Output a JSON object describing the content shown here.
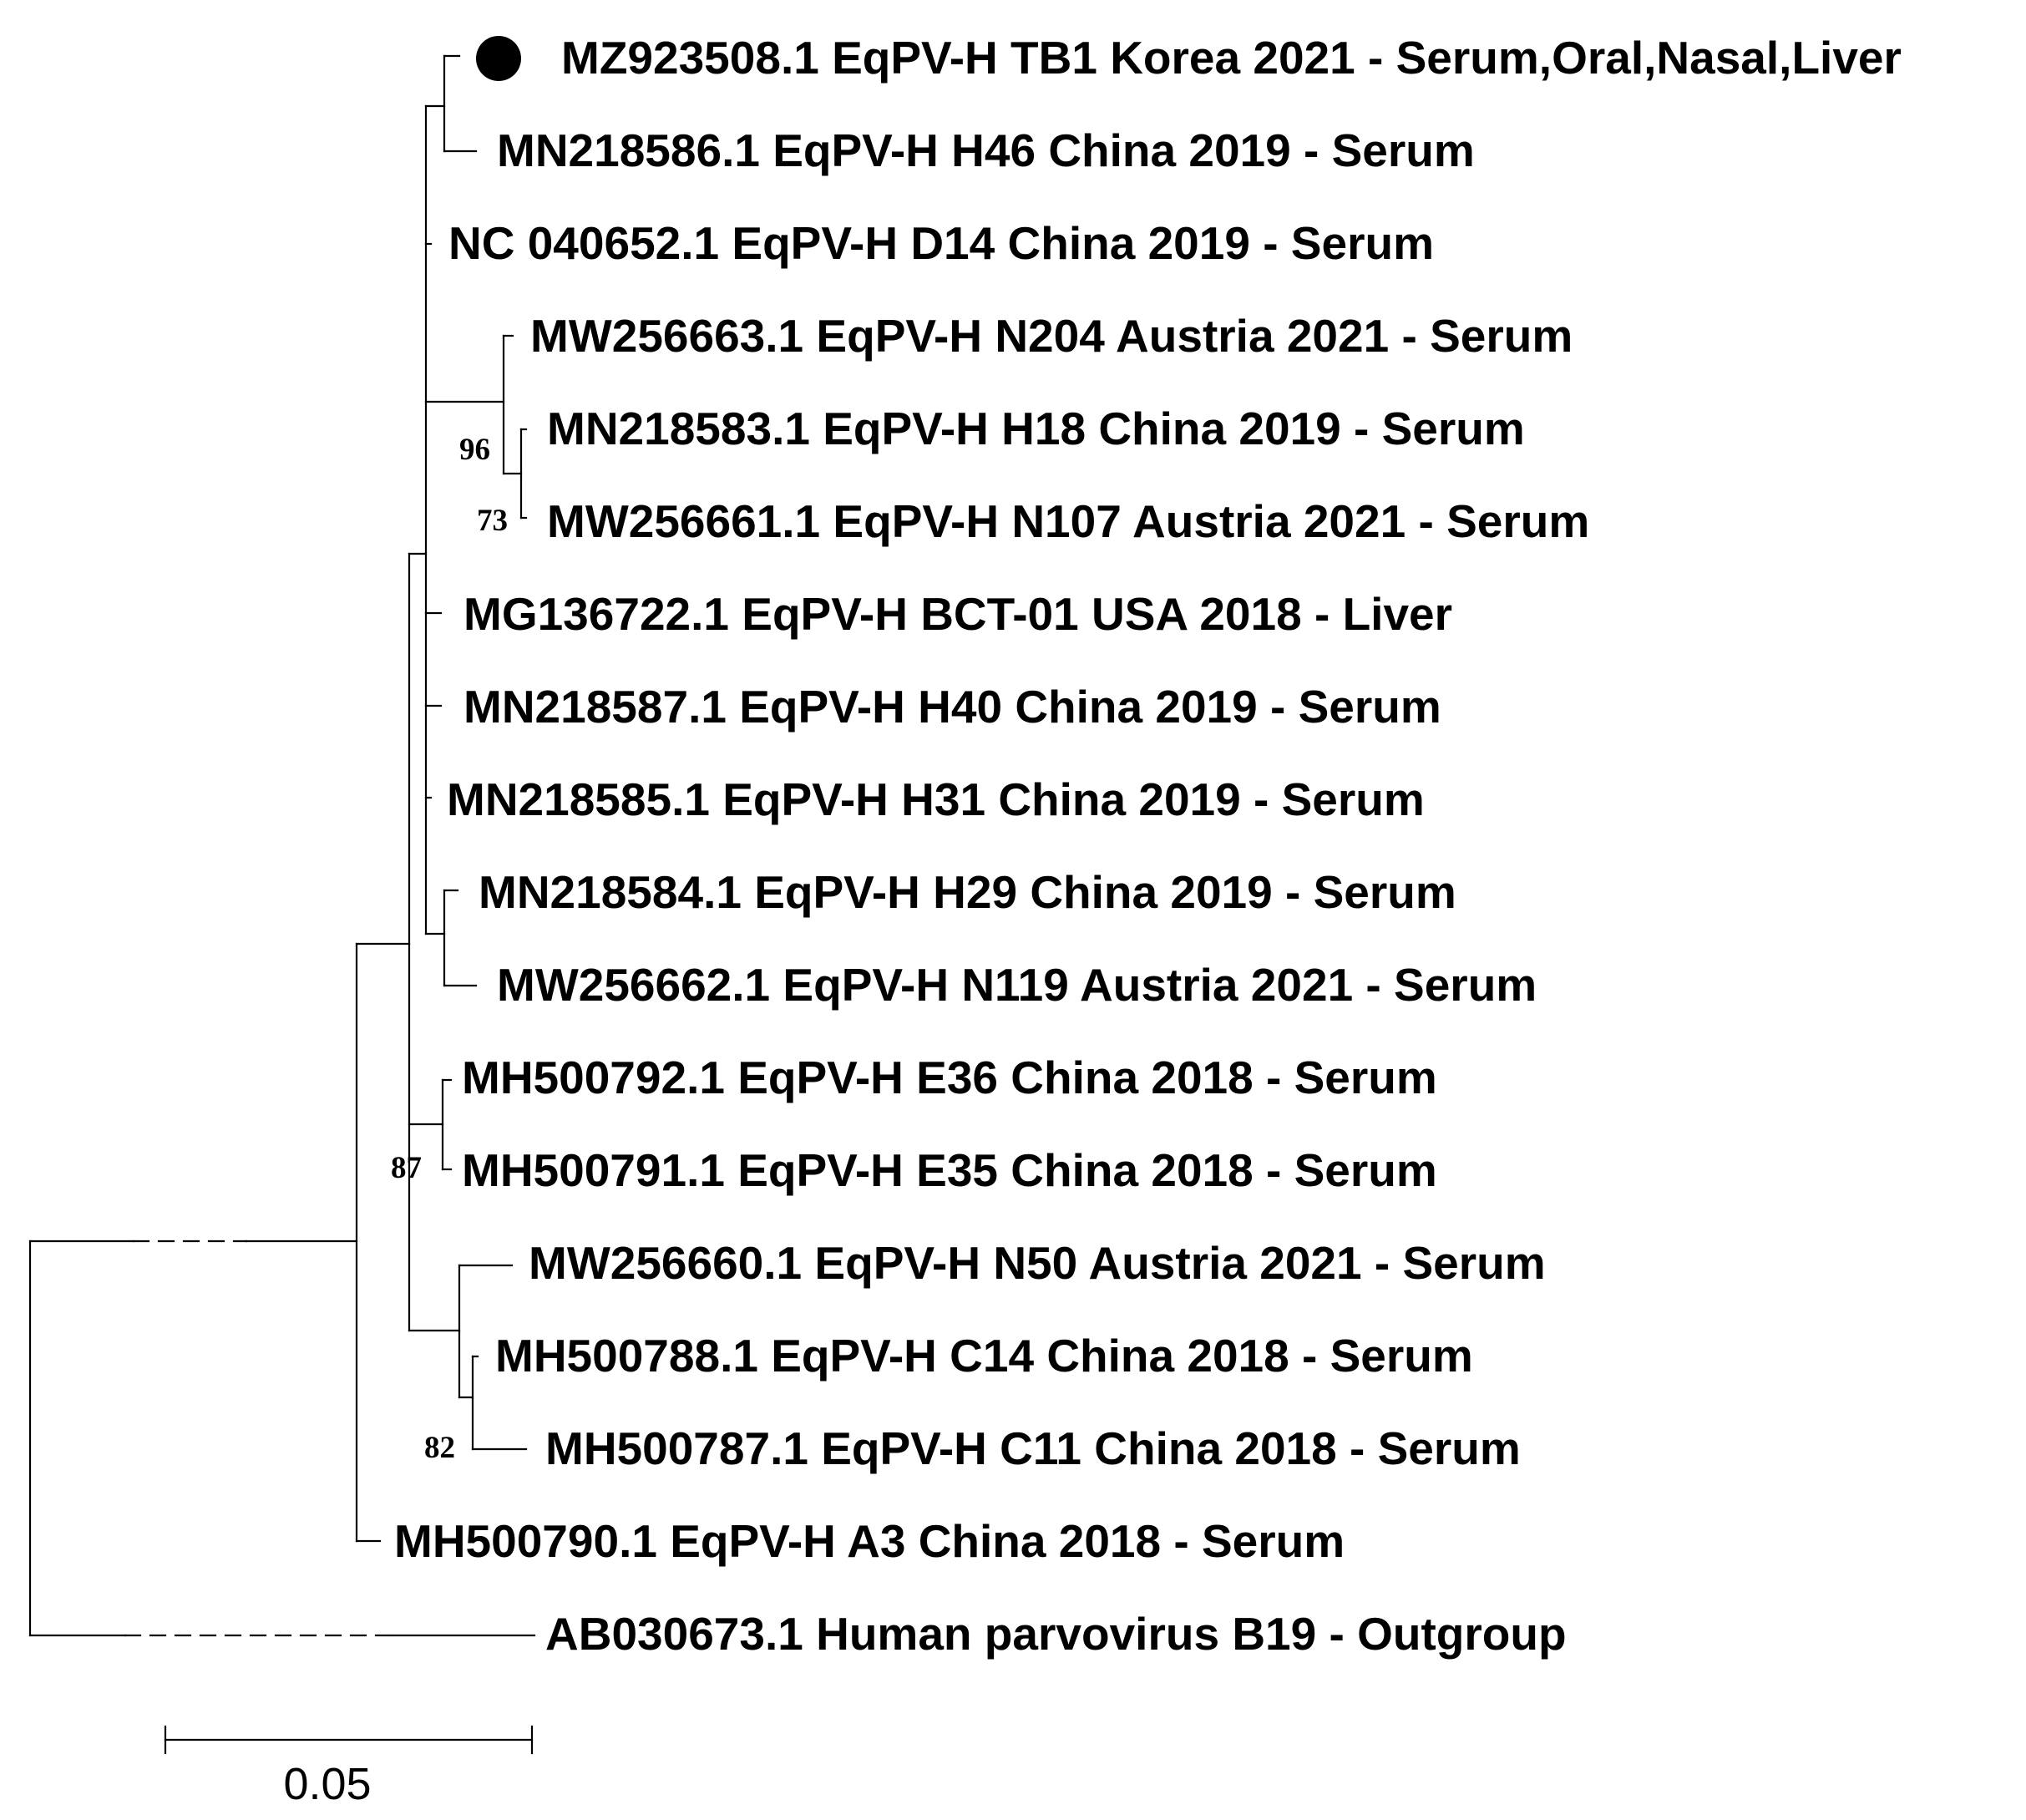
{
  "tree": {
    "leaves": [
      {
        "id": "MZ923508.1",
        "label": "MZ923508.1 EqPV-H TB1 Korea 2021 - Serum,Oral,Nasal,Liver",
        "marked": true
      },
      {
        "id": "MN218586.1",
        "label": "MN218586.1 EqPV-H H46 China 2019 - Serum"
      },
      {
        "id": "NC_040652.1",
        "label": "NC 040652.1 EqPV-H D14 China 2019 - Serum"
      },
      {
        "id": "MW256663.1",
        "label": "MW256663.1 EqPV-H N204 Austria 2021 - Serum"
      },
      {
        "id": "MN218583.1",
        "label": "MN218583.1 EqPV-H H18 China 2019 - Serum"
      },
      {
        "id": "MW256661.1",
        "label": "MW256661.1 EqPV-H N107 Austria 2021 - Serum"
      },
      {
        "id": "MG136722.1",
        "label": "MG136722.1 EqPV-H BCT-01 USA 2018 - Liver"
      },
      {
        "id": "MN218587.1",
        "label": "MN218587.1 EqPV-H H40 China 2019 - Serum"
      },
      {
        "id": "MN218585.1",
        "label": "MN218585.1 EqPV-H H31 China 2019 - Serum"
      },
      {
        "id": "MN218584.1",
        "label": "MN218584.1 EqPV-H H29 China 2019 - Serum"
      },
      {
        "id": "MW256662.1",
        "label": "MW256662.1 EqPV-H N119 Austria 2021 - Serum"
      },
      {
        "id": "MH500792.1",
        "label": "MH500792.1 EqPV-H E36 China 2018 - Serum"
      },
      {
        "id": "MH500791.1",
        "label": "MH500791.1 EqPV-H E35 China 2018 - Serum"
      },
      {
        "id": "MW256660.1",
        "label": "MW256660.1 EqPV-H N50 Austria 2021 - Serum"
      },
      {
        "id": "MH500788.1",
        "label": "MH500788.1 EqPV-H C14 China 2018 - Serum"
      },
      {
        "id": "MH500787.1",
        "label": "MH500787.1 EqPV-H C11 China 2018 - Serum"
      },
      {
        "id": "MH500790.1",
        "label": "MH500790.1 EqPV-H A3 China 2018 - Serum"
      },
      {
        "id": "AB030673.1",
        "label": "AB030673.1 Human parvovirus B19 - Outgroup"
      }
    ],
    "bootstrap": [
      {
        "value": "96",
        "clade": [
          "MN218583.1",
          "MW256661.1",
          "MW256663.1"
        ]
      },
      {
        "value": "73",
        "clade": [
          "MN218583.1",
          "MW256661.1"
        ]
      },
      {
        "value": "87",
        "clade": [
          "MH500792.1",
          "MH500791.1"
        ]
      },
      {
        "value": "82",
        "clade": [
          "MH500788.1",
          "MH500787.1"
        ]
      }
    ],
    "scale_bar": {
      "value": 0.05,
      "label": "0.05"
    }
  }
}
